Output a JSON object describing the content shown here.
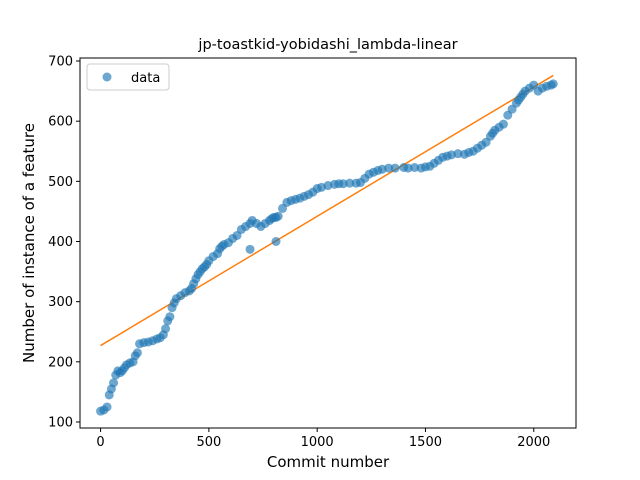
{
  "chart_data": {
    "type": "scatter",
    "title": "jp-toastkid-yobidashi_lambda-linear",
    "xlabel": "Commit number",
    "ylabel": "Number of instance of a feature",
    "xlim": [
      -95,
      2195
    ],
    "ylim": [
      90,
      705
    ],
    "xticks": [
      0,
      500,
      1000,
      1500,
      2000
    ],
    "yticks": [
      100,
      200,
      300,
      400,
      500,
      600,
      700
    ],
    "grid": false,
    "legend_position": "top-left",
    "colors": {
      "data": "#1f77b4",
      "fit": "#ff7f0e",
      "axes": "#000000",
      "legend_border": "#cccccc"
    },
    "series": [
      {
        "name": "data",
        "kind": "scatter",
        "x": [
          0,
          15,
          30,
          40,
          50,
          60,
          70,
          80,
          90,
          100,
          110,
          120,
          135,
          150,
          160,
          170,
          180,
          200,
          220,
          240,
          260,
          275,
          290,
          300,
          310,
          320,
          330,
          340,
          350,
          370,
          390,
          410,
          420,
          430,
          440,
          450,
          460,
          470,
          480,
          490,
          500,
          520,
          540,
          550,
          560,
          570,
          590,
          610,
          630,
          650,
          670,
          690,
          700,
          720,
          740,
          760,
          780,
          790,
          800,
          810,
          820,
          840,
          860,
          880,
          900,
          920,
          940,
          960,
          980,
          1000,
          1020,
          1050,
          1080,
          1100,
          1120,
          1150,
          1180,
          1200,
          1220,
          1240,
          1260,
          1280,
          1300,
          1330,
          1360,
          1400,
          1420,
          1450,
          1480,
          1500,
          1520,
          1540,
          1560,
          1580,
          1600,
          1620,
          1650,
          1680,
          1700,
          1720,
          1740,
          1760,
          1780,
          1800,
          1810,
          1820,
          1840,
          1860,
          1880,
          1900,
          1920,
          1930,
          1940,
          1950,
          1960,
          1980,
          2000,
          2020,
          2040,
          2060,
          2080,
          2090,
          690,
          810
        ],
        "y": [
          118,
          120,
          125,
          145,
          155,
          165,
          178,
          185,
          182,
          185,
          190,
          195,
          198,
          200,
          210,
          215,
          230,
          232,
          233,
          235,
          238,
          240,
          245,
          255,
          268,
          275,
          290,
          298,
          305,
          310,
          315,
          318,
          322,
          330,
          338,
          345,
          350,
          355,
          358,
          362,
          368,
          375,
          380,
          388,
          392,
          395,
          398,
          405,
          410,
          420,
          425,
          430,
          435,
          430,
          425,
          430,
          435,
          438,
          440,
          440,
          442,
          455,
          465,
          468,
          470,
          472,
          475,
          478,
          482,
          488,
          490,
          493,
          495,
          496,
          496,
          497,
          497,
          498,
          505,
          512,
          515,
          518,
          520,
          522,
          522,
          523,
          522,
          523,
          522,
          524,
          525,
          530,
          535,
          540,
          542,
          544,
          546,
          545,
          548,
          550,
          555,
          560,
          565,
          575,
          580,
          585,
          590,
          595,
          610,
          620,
          630,
          635,
          640,
          645,
          650,
          655,
          660,
          650,
          655,
          658,
          660,
          662,
          387,
          400
        ]
      },
      {
        "name": "",
        "kind": "line",
        "x": [
          0,
          2090
        ],
        "y": [
          227,
          676
        ]
      }
    ]
  }
}
